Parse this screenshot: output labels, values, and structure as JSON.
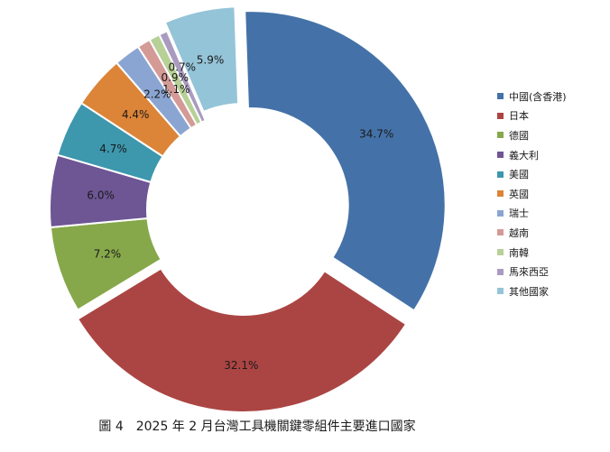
{
  "caption": "圖 4　2025 年 2 月台灣工具機關鍵零組件主要進口國家",
  "chart_data": {
    "type": "pie",
    "style": "doughnut",
    "unit": "%",
    "legend_position": "right",
    "categories": [
      "中國(含香港)",
      "日本",
      "德國",
      "義大利",
      "美國",
      "英國",
      "瑞士",
      "越南",
      "南韓",
      "馬來西亞",
      "其他國家"
    ],
    "values": [
      34.7,
      32.1,
      7.2,
      6.0,
      4.7,
      4.4,
      2.2,
      1.1,
      0.9,
      0.7,
      5.9
    ],
    "labels": [
      "34.7%",
      "32.1%",
      "7.2%",
      "6.0%",
      "4.7%",
      "4.4%",
      "2.2%",
      "1.1%",
      "0.9%",
      "0.7%",
      "5.9%"
    ],
    "colors": [
      "#4472a8",
      "#ab4543",
      "#86a84a",
      "#6e5594",
      "#3d97ad",
      "#dc8438",
      "#8aa5d2",
      "#d49a96",
      "#b7d097",
      "#a99bc0",
      "#94c4d8"
    ],
    "exploded": [
      true,
      true,
      false,
      false,
      false,
      false,
      false,
      false,
      false,
      false,
      true
    ]
  }
}
